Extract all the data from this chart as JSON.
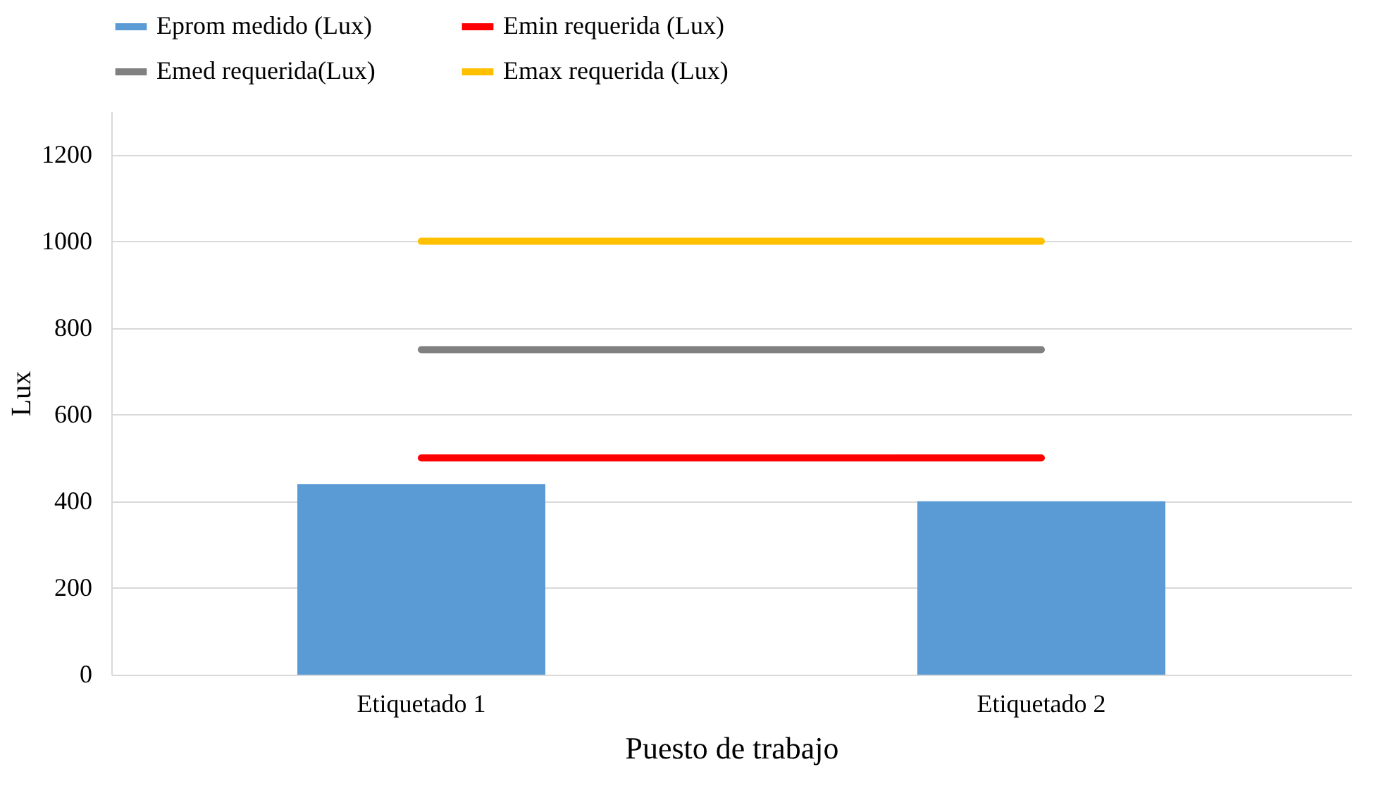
{
  "chart_data": {
    "type": "bar",
    "xlabel": "Puesto de trabajo",
    "ylabel": "Lux",
    "categories": [
      "Etiquetado 1",
      "Etiquetado 2"
    ],
    "series": [
      {
        "name": "Eprom medido (Lux)",
        "color": "#5b9bd5",
        "values": [
          440,
          400
        ]
      },
      {
        "name": "Emin requerida (Lux)",
        "type": "line",
        "color": "#ff0000",
        "values": [
          500,
          500
        ]
      },
      {
        "name": "Emed requerida(Lux)",
        "type": "line",
        "color": "#808080",
        "values": [
          750,
          750
        ]
      },
      {
        "name": "Emax requerida (Lux)",
        "type": "line",
        "color": "#ffc000",
        "values": [
          1000,
          1000
        ]
      }
    ],
    "ylim": [
      0,
      1300
    ],
    "yticks": [
      0,
      200,
      400,
      600,
      800,
      1000,
      1200
    ],
    "grid": "y",
    "legend": "top"
  }
}
